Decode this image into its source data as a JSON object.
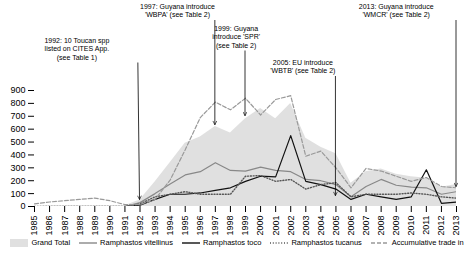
{
  "chart_data": {
    "type": "line",
    "x": [
      1985,
      1986,
      1987,
      1988,
      1989,
      1990,
      1991,
      1992,
      1993,
      1994,
      1995,
      1996,
      1997,
      1998,
      1999,
      2000,
      2001,
      2002,
      2003,
      2004,
      2005,
      2006,
      2007,
      2008,
      2009,
      2010,
      2011,
      2012,
      2013
    ],
    "series": [
      {
        "name": "Grand Total",
        "type": "area",
        "color": "#cccccc",
        "values": [
          0,
          5,
          5,
          5,
          5,
          5,
          5,
          50,
          190,
          340,
          490,
          540,
          620,
          570,
          680,
          760,
          680,
          800,
          530,
          460,
          410,
          180,
          270,
          290,
          250,
          230,
          220,
          150,
          170
        ]
      },
      {
        "name": "Ramphastos vitellinus",
        "type": "line",
        "color": "#888888",
        "line_style": "solid",
        "values": [
          0,
          0,
          0,
          0,
          0,
          0,
          0,
          30,
          100,
          175,
          245,
          270,
          340,
          280,
          275,
          305,
          280,
          270,
          210,
          200,
          170,
          75,
          155,
          210,
          165,
          150,
          145,
          95,
          115
        ]
      },
      {
        "name": "Ramphastos toco",
        "type": "line",
        "color": "#111111",
        "line_style": "solid",
        "values": [
          0,
          0,
          0,
          0,
          0,
          0,
          0,
          10,
          55,
          95,
          95,
          105,
          125,
          145,
          195,
          235,
          230,
          550,
          195,
          170,
          135,
          55,
          95,
          75,
          55,
          75,
          285,
          25,
          35
        ]
      },
      {
        "name": "Ramphastos tucanus",
        "type": "line",
        "color": "#555555",
        "line_style": "dotted",
        "values": [
          0,
          0,
          0,
          0,
          0,
          0,
          0,
          20,
          75,
          95,
          115,
          95,
          95,
          95,
          235,
          240,
          195,
          210,
          135,
          170,
          185,
          75,
          95,
          95,
          95,
          105,
          95,
          75,
          65
        ]
      },
      {
        "name": "Accumulative trade in",
        "type": "line",
        "color": "#999999",
        "line_style": "dashed",
        "values": [
          20,
          35,
          45,
          55,
          65,
          45,
          15,
          15,
          55,
          205,
          440,
          690,
          810,
          750,
          840,
          710,
          830,
          860,
          390,
          430,
          300,
          145,
          295,
          275,
          235,
          195,
          225,
          155,
          145
        ]
      }
    ],
    "xlim": [
      1985,
      2013
    ],
    "xticks": [
      1985,
      1986,
      1987,
      1988,
      1989,
      1990,
      1991,
      1992,
      1993,
      1994,
      1995,
      1996,
      1997,
      1998,
      1999,
      2000,
      2001,
      2002,
      2003,
      2004,
      2005,
      2006,
      2007,
      2008,
      2009,
      2010,
      2011,
      2012,
      2013
    ],
    "ylim": [
      0,
      900
    ],
    "yticks": [
      0,
      100,
      200,
      300,
      400,
      500,
      600,
      700,
      800,
      900
    ],
    "grid": false,
    "legend": "bottom",
    "annotations": [
      {
        "text": "1992: 10 Toucan spp\nlisted on CITES App.\n(see Table 1)",
        "x": 1992,
        "y": 50
      },
      {
        "text": "1997: Guyana introduce\n'WBPA' (see Table 2)",
        "x": 1997,
        "y": 630
      },
      {
        "text": "1999: Guyana\nintroduce 'SPR'\n(see Table 2)",
        "x": 1999,
        "y": 700
      },
      {
        "text": "2005: EU introduce\n'WBTB' (see Table 2)",
        "x": 2005,
        "y": 80
      },
      {
        "text": "2013: Guyana introduce\n'WMCR' (see Table 2)",
        "x": 2013,
        "y": 150
      }
    ]
  }
}
